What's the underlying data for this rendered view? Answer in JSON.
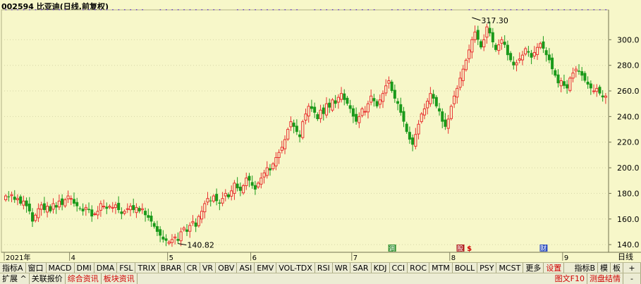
{
  "title": "002594 比亚迪(日线,前复权)",
  "chart_data": {
    "type": "candlestick",
    "title": "002594 比亚迪(日线,前复权)",
    "y_ticks": [
      140.0,
      160.0,
      180.0,
      200.0,
      220.0,
      240.0,
      260.0,
      280.0,
      300.0
    ],
    "ylim": [
      134,
      320
    ],
    "x_labels": [
      {
        "label": "2021年",
        "index": 0
      },
      {
        "label": "4",
        "index": 22
      },
      {
        "label": "5",
        "index": 55
      },
      {
        "label": "6",
        "index": 83
      },
      {
        "label": "7",
        "index": 117
      },
      {
        "label": "8",
        "index": 150
      },
      {
        "label": "9",
        "index": 188
      }
    ],
    "annotations": [
      {
        "text": "317.30",
        "index": 157,
        "value": 317.3
      },
      {
        "text": "140.82",
        "index": 58,
        "value": 140.82
      }
    ],
    "events": [
      {
        "text": "调",
        "index": 130,
        "color": "#2f8f2f"
      },
      {
        "text": "股",
        "index": 153,
        "color": "#b02020"
      },
      {
        "text": "$",
        "index": 156,
        "color": "#d00000"
      },
      {
        "text": "财",
        "index": 181,
        "color": "#3050c0"
      }
    ],
    "closes": [
      178,
      177,
      179,
      175,
      176,
      172,
      174,
      170,
      166,
      158,
      163,
      168,
      171,
      167,
      170,
      166,
      172,
      169,
      174,
      171,
      175,
      178,
      176,
      172,
      170,
      168,
      166,
      169,
      167,
      162,
      164,
      166,
      172,
      170,
      168,
      170,
      169,
      171,
      167,
      164,
      166,
      168,
      170,
      167,
      169,
      166,
      168,
      163,
      161,
      158,
      154,
      150,
      147,
      144,
      143,
      142,
      144,
      146,
      143,
      150,
      153,
      150,
      155,
      158,
      154,
      162,
      166,
      172,
      176,
      174,
      178,
      174,
      172,
      176,
      180,
      177,
      182,
      188,
      184,
      182,
      186,
      192,
      190,
      186,
      183,
      188,
      192,
      196,
      200,
      198,
      203,
      208,
      212,
      216,
      222,
      230,
      236,
      232,
      228,
      224,
      236,
      242,
      248,
      246,
      243,
      238,
      245,
      242,
      250,
      247,
      253,
      250,
      255,
      258,
      253,
      250,
      246,
      240,
      236,
      240,
      246,
      244,
      250,
      256,
      252,
      248,
      253,
      258,
      264,
      268,
      260,
      254,
      250,
      243,
      236,
      228,
      222,
      218,
      226,
      234,
      242,
      246,
      252,
      258,
      254,
      248,
      244,
      236,
      232,
      238,
      248,
      256,
      262,
      270,
      277,
      284,
      292,
      300,
      306,
      300,
      294,
      300,
      310,
      305,
      298,
      292,
      296,
      300,
      296,
      288,
      284,
      280,
      282,
      285,
      288,
      293,
      290,
      286,
      290,
      294,
      297,
      293,
      288,
      284,
      277,
      272,
      266,
      268,
      264,
      262,
      270,
      274,
      277,
      275,
      272,
      268,
      265,
      262,
      260,
      262,
      258,
      255,
      256
    ]
  },
  "bar1": {
    "left": [
      "指标A",
      "窗口",
      "MACD",
      "DMI",
      "DMA",
      "FSL",
      "TRIX",
      "BRAR",
      "CR",
      "VR",
      "OBV",
      "ASI",
      "EMV",
      "VOL-TDX",
      "RSI",
      "WR",
      "SAR",
      "KDJ",
      "CCI",
      "ROC",
      "MTM",
      "BOLL",
      "PSY",
      "MCST",
      "更多",
      "设置"
    ],
    "right": [
      "指标B",
      "模",
      "板"
    ]
  },
  "bar2": {
    "left": [
      "扩展 ^",
      "关联报价",
      "综合资讯",
      "板块资讯"
    ],
    "right": [
      "图文F10",
      "测盘结情"
    ]
  },
  "corner": {
    "top_label": "日线",
    "plus": "+",
    "minus": "-"
  }
}
